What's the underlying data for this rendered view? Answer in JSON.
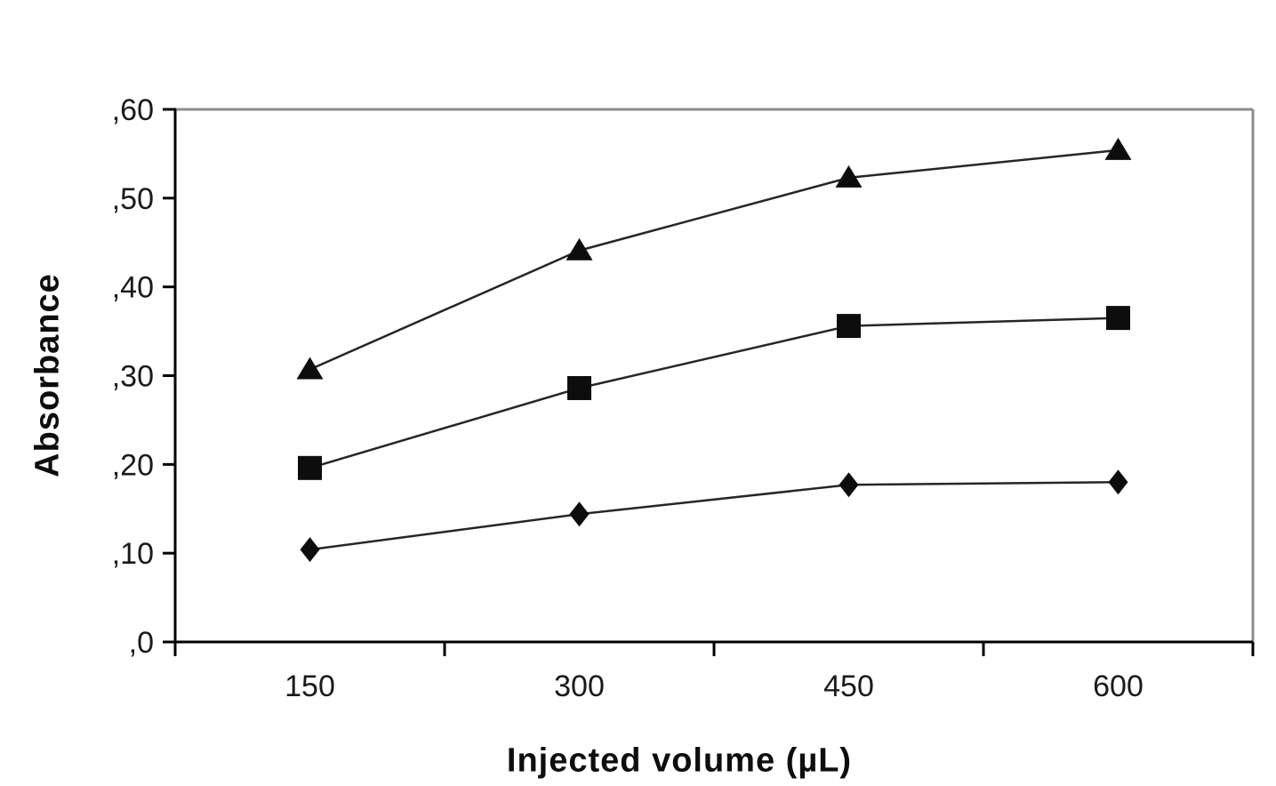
{
  "chart_data": {
    "type": "line",
    "title": "",
    "xlabel": "Injected volume (µL)",
    "ylabel": "Absorbance",
    "categories": [
      150,
      300,
      450,
      600
    ],
    "x_tick_labels": [
      "150",
      "300",
      "450",
      "600"
    ],
    "y_ticks": {
      "values": [
        0,
        0.1,
        0.2,
        0.3,
        0.4,
        0.5,
        0.6
      ],
      "labels": [
        ",0",
        ",10",
        ",20",
        ",30",
        ",40",
        ",50",
        ",60"
      ]
    },
    "ylim": [
      0,
      0.6
    ],
    "grid": "off",
    "legend": "none",
    "series": [
      {
        "name": "triangle-series",
        "marker": "triangle",
        "values": [
          0.307,
          0.441,
          0.523,
          0.554
        ]
      },
      {
        "name": "square-series",
        "marker": "square",
        "values": [
          0.196,
          0.286,
          0.356,
          0.365
        ]
      },
      {
        "name": "diamond-series",
        "marker": "diamond",
        "values": [
          0.104,
          0.144,
          0.177,
          0.18
        ]
      }
    ],
    "colors": {
      "line": "#262626",
      "marker": "#0d0d0d",
      "axis": "#000000",
      "frame": "#8c8c8c",
      "text": "#1a1a1a",
      "background": "#ffffff"
    }
  }
}
